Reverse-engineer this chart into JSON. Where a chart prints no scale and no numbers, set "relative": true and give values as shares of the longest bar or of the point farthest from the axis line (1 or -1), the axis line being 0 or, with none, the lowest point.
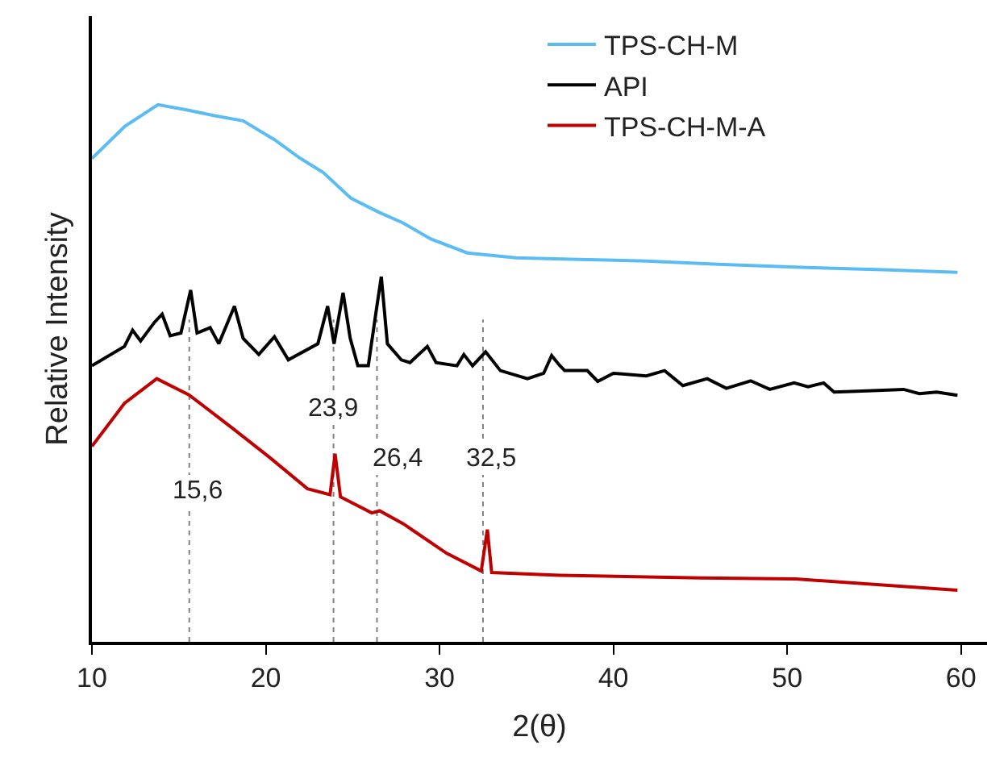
{
  "chart_data": {
    "type": "line",
    "xlabel": "2(θ)",
    "ylabel": "Relative Intensity",
    "relative": true,
    "xlim": [
      10,
      61.5
    ],
    "xticks": [
      10,
      20,
      30,
      40,
      50,
      60
    ],
    "legend": "top right",
    "grid": false,
    "marker": "none",
    "line_style": "solid",
    "series": [
      {
        "name": "TPS-CH-M",
        "color": "#5bbcf4",
        "x": [
          10,
          11.9,
          13.8,
          15.5,
          17.0,
          18.7,
          20.5,
          22.0,
          23.3,
          24.9,
          26.5,
          27.9,
          29.5,
          31.6,
          34.4,
          38.0,
          41.9,
          46.0,
          51.1,
          55.5,
          59.8
        ],
        "values": [
          0.9,
          0.96,
          1.0,
          0.99,
          0.98,
          0.97,
          0.935,
          0.9,
          0.874,
          0.826,
          0.8,
          0.78,
          0.75,
          0.724,
          0.715,
          0.712,
          0.709,
          0.703,
          0.697,
          0.693,
          0.688
        ]
      },
      {
        "name": "API",
        "color": "#000000",
        "x": [
          10,
          11.87,
          12.34,
          12.8,
          13.6,
          14.04,
          14.5,
          15.12,
          15.68,
          16.05,
          16.8,
          17.3,
          18.2,
          18.7,
          19.6,
          20.5,
          21.3,
          23.0,
          23.56,
          23.93,
          24.45,
          24.86,
          25.3,
          25.9,
          26.35,
          26.65,
          27.0,
          27.8,
          28.3,
          29.3,
          29.8,
          31.0,
          31.4,
          31.9,
          32.65,
          33.5,
          35.06,
          35.99,
          36.45,
          36.9,
          37.2,
          38.5,
          39.1,
          40.0,
          41.9,
          42.95,
          44.0,
          45.4,
          46.5,
          47.9,
          49.0,
          50.4,
          51.2,
          52.1,
          52.7,
          54.3,
          56.7,
          57.6,
          58.6,
          59.8
        ],
        "values": [
          0.514,
          0.55,
          0.58,
          0.56,
          0.595,
          0.61,
          0.57,
          0.575,
          0.655,
          0.575,
          0.585,
          0.555,
          0.625,
          0.565,
          0.535,
          0.568,
          0.525,
          0.555,
          0.625,
          0.555,
          0.65,
          0.565,
          0.514,
          0.514,
          0.615,
          0.68,
          0.555,
          0.525,
          0.52,
          0.55,
          0.52,
          0.514,
          0.535,
          0.514,
          0.54,
          0.505,
          0.49,
          0.5,
          0.533,
          0.515,
          0.505,
          0.505,
          0.485,
          0.5,
          0.495,
          0.505,
          0.477,
          0.49,
          0.472,
          0.486,
          0.47,
          0.482,
          0.475,
          0.482,
          0.465,
          0.467,
          0.47,
          0.462,
          0.465,
          0.459
        ]
      },
      {
        "name": "TPS-CH-M-A",
        "color": "#c00000",
        "x": [
          10,
          11.87,
          13.73,
          15.58,
          18.0,
          20.2,
          22.4,
          23.7,
          23.99,
          24.3,
          26.1,
          26.55,
          27.9,
          30.4,
          32.4,
          32.75,
          33.0,
          36.9,
          45.0,
          50.5,
          59.8
        ],
        "values": [
          0.364,
          0.444,
          0.49,
          0.46,
          0.4,
          0.344,
          0.285,
          0.274,
          0.35,
          0.27,
          0.24,
          0.244,
          0.22,
          0.165,
          0.132,
          0.209,
          0.129,
          0.124,
          0.119,
          0.117,
          0.096
        ]
      }
    ],
    "ref_lines": [
      {
        "axis": "x",
        "value": 15.6,
        "label": "15,6",
        "color": "#808080",
        "line_style": "dotted"
      },
      {
        "axis": "x",
        "value": 23.9,
        "label": "23,9",
        "color": "#808080",
        "line_style": "dotted"
      },
      {
        "axis": "x",
        "value": 26.4,
        "label": "26,4",
        "color": "#808080",
        "line_style": "dotted"
      },
      {
        "axis": "x",
        "value": 32.5,
        "label": "32,5",
        "color": "#808080",
        "line_style": "dotted"
      }
    ]
  }
}
